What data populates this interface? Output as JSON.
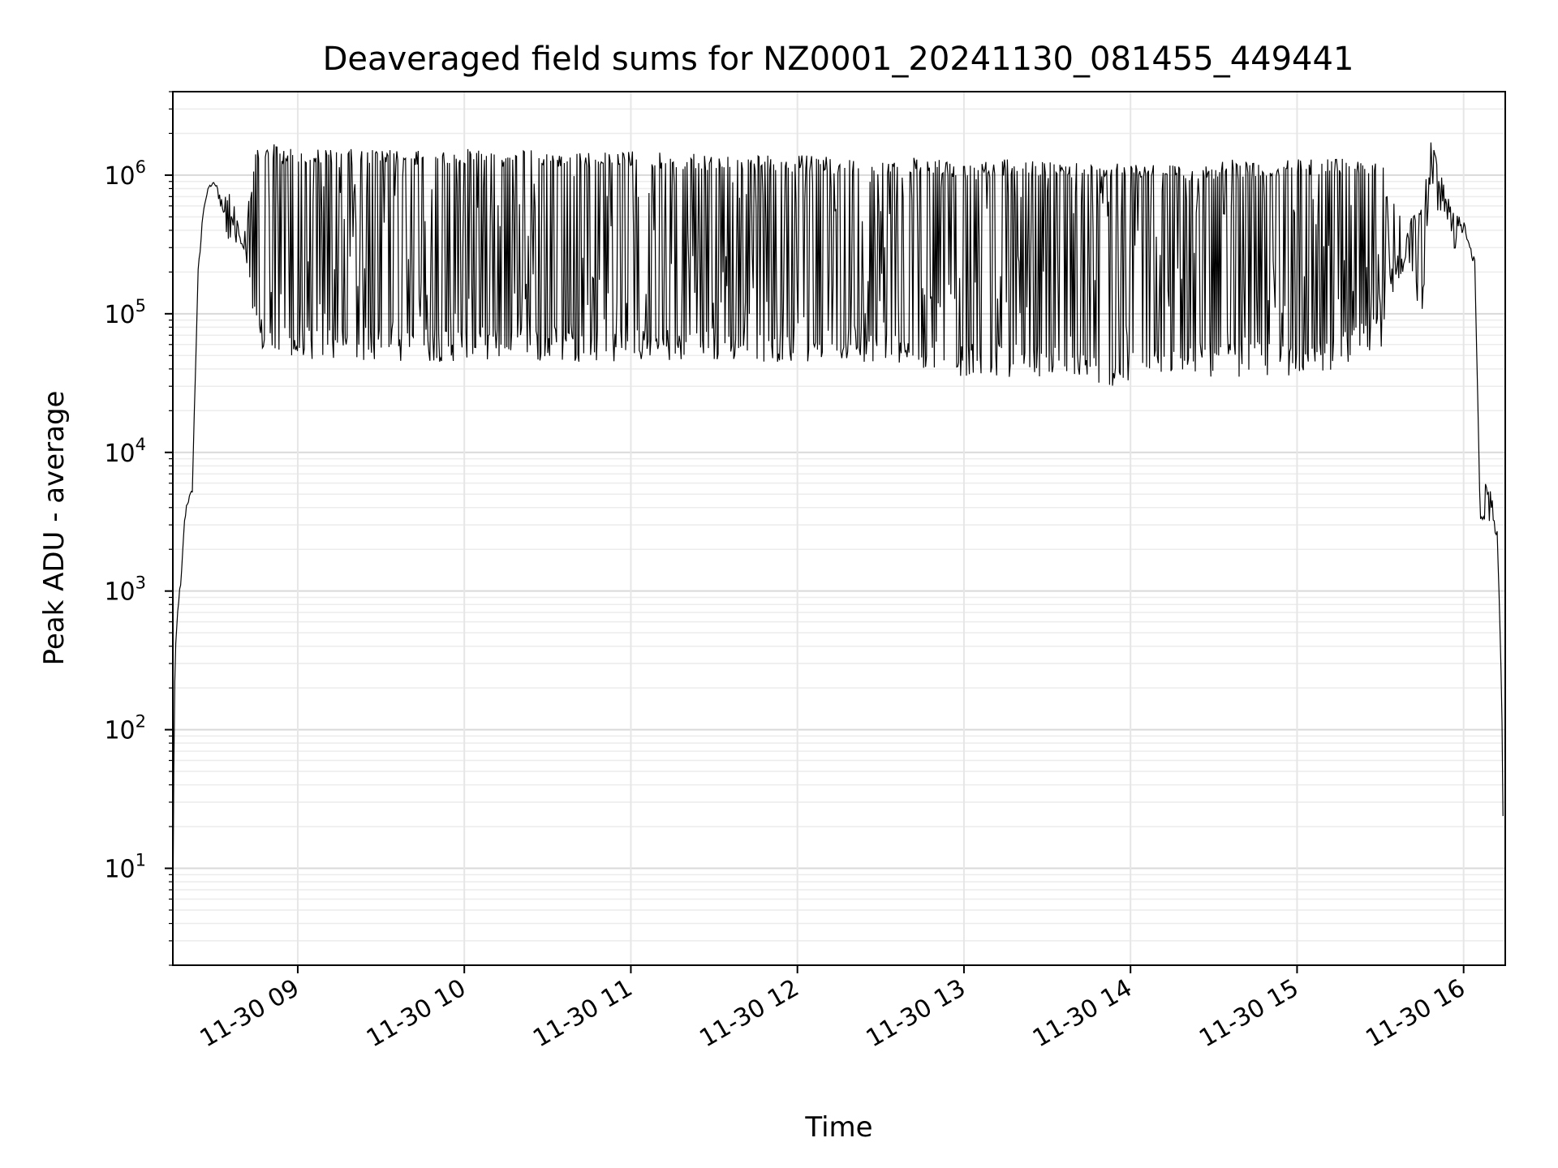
{
  "chart_data": {
    "type": "line",
    "title": "Deaveraged field sums for NZ0001_20241130_081455_449441",
    "xlabel": "Time",
    "ylabel": "Peak ADU - average",
    "yscale": "log",
    "ylim": [
      2,
      4000000
    ],
    "xlim": [
      "2024-11-30T08:15:00",
      "2024-11-30T16:15:00"
    ],
    "x_ticks": [
      {
        "value": "2024-11-30T09:00",
        "label": "11-30 09"
      },
      {
        "value": "2024-11-30T10:00",
        "label": "11-30 10"
      },
      {
        "value": "2024-11-30T11:00",
        "label": "11-30 11"
      },
      {
        "value": "2024-11-30T12:00",
        "label": "11-30 12"
      },
      {
        "value": "2024-11-30T13:00",
        "label": "11-30 13"
      },
      {
        "value": "2024-11-30T14:00",
        "label": "11-30 14"
      },
      {
        "value": "2024-11-30T15:00",
        "label": "11-30 15"
      },
      {
        "value": "2024-11-30T16:00",
        "label": "11-30 16"
      }
    ],
    "y_ticks": [
      {
        "value": 10,
        "base": "10",
        "exp": "1"
      },
      {
        "value": 100,
        "base": "10",
        "exp": "2"
      },
      {
        "value": 1000,
        "base": "10",
        "exp": "3"
      },
      {
        "value": 10000,
        "base": "10",
        "exp": "4"
      },
      {
        "value": 100000,
        "base": "10",
        "exp": "5"
      },
      {
        "value": 1000000,
        "base": "10",
        "exp": "6"
      }
    ],
    "grid": true,
    "line_color": "#000000",
    "series": [
      {
        "x": [
          "2024-11-30T08:15:00",
          "2024-11-30T08:15:30",
          "2024-11-30T08:16:00",
          "2024-11-30T08:17:00",
          "2024-11-30T08:18:00",
          "2024-11-30T08:19:00",
          "2024-11-30T08:20:00",
          "2024-11-30T08:22:00",
          "2024-11-30T08:24:00",
          "2024-11-30T08:26:00",
          "2024-11-30T08:28:00",
          "2024-11-30T08:30:00",
          "2024-11-30T08:32:00",
          "2024-11-30T08:34:00",
          "2024-11-30T08:36:00",
          "2024-11-30T08:40:00",
          "2024-11-30T08:45:00",
          "2024-11-30T08:50:00",
          "2024-11-30T08:55:00",
          "2024-11-30T09:00:00",
          "2024-11-30T09:05:00",
          "2024-11-30T09:10:00",
          "2024-11-30T09:15:00",
          "2024-11-30T09:20:00",
          "2024-11-30T09:30:00",
          "2024-11-30T09:40:00",
          "2024-11-30T09:50:00",
          "2024-11-30T10:00:00",
          "2024-11-30T10:15:00",
          "2024-11-30T10:30:00",
          "2024-11-30T10:45:00",
          "2024-11-30T11:00:00",
          "2024-11-30T11:15:00",
          "2024-11-30T11:30:00",
          "2024-11-30T11:45:00",
          "2024-11-30T12:00:00",
          "2024-11-30T12:15:00",
          "2024-11-30T12:30:00",
          "2024-11-30T12:45:00",
          "2024-11-30T13:00:00",
          "2024-11-30T13:15:00",
          "2024-11-30T13:30:00",
          "2024-11-30T13:45:00",
          "2024-11-30T14:00:00",
          "2024-11-30T14:15:00",
          "2024-11-30T14:25:00",
          "2024-11-30T14:35:00",
          "2024-11-30T14:45:00",
          "2024-11-30T15:00:00",
          "2024-11-30T15:15:00",
          "2024-11-30T15:30:00",
          "2024-11-30T15:40:00",
          "2024-11-30T15:45:00",
          "2024-11-30T15:48:00",
          "2024-11-30T15:52:00",
          "2024-11-30T15:56:00",
          "2024-11-30T16:00:00",
          "2024-11-30T16:04:00",
          "2024-11-30T16:06:00",
          "2024-11-30T16:08:00",
          "2024-11-30T16:10:00",
          "2024-11-30T16:12:00",
          "2024-11-30T16:13:00",
          "2024-11-30T16:14:00",
          "2024-11-30T16:14:30"
        ],
        "upper": [
          4,
          150,
          400,
          900,
          1300,
          3000,
          4500,
          5500,
          200000,
          600000,
          850000,
          900000,
          800000,
          600000,
          900000,
          350000,
          1500000,
          1700000,
          1600000,
          1600000,
          1600000,
          1550000,
          1500000,
          1550000,
          1550000,
          1500000,
          1500000,
          1550000,
          1550000,
          1500000,
          1450000,
          1500000,
          1450000,
          1400000,
          1400000,
          1400000,
          1350000,
          1300000,
          1350000,
          1200000,
          1300000,
          1250000,
          1250000,
          1250000,
          1200000,
          1150000,
          1300000,
          1250000,
          1300000,
          1350000,
          1350000,
          450000,
          700000,
          2000000,
          1100000,
          550000,
          500000,
          250000,
          5000,
          6000,
          4500,
          3000,
          800,
          100,
          4
        ],
        "lower": [
          4,
          150,
          400,
          800,
          900,
          2800,
          4000,
          5000,
          150000,
          550000,
          800000,
          850000,
          600000,
          400000,
          300000,
          250000,
          60000,
          45000,
          45000,
          45000,
          45000,
          45000,
          45000,
          45000,
          45000,
          45000,
          45000,
          45000,
          45000,
          45000,
          45000,
          45000,
          45000,
          45000,
          45000,
          45000,
          45000,
          45000,
          40000,
          35000,
          35000,
          35000,
          30000,
          30000,
          35000,
          35000,
          35000,
          35000,
          35000,
          40000,
          55000,
          250000,
          80000,
          900000,
          400000,
          250000,
          400000,
          200000,
          2500,
          3500,
          3000,
          2000,
          500,
          60,
          4
        ]
      }
    ]
  }
}
